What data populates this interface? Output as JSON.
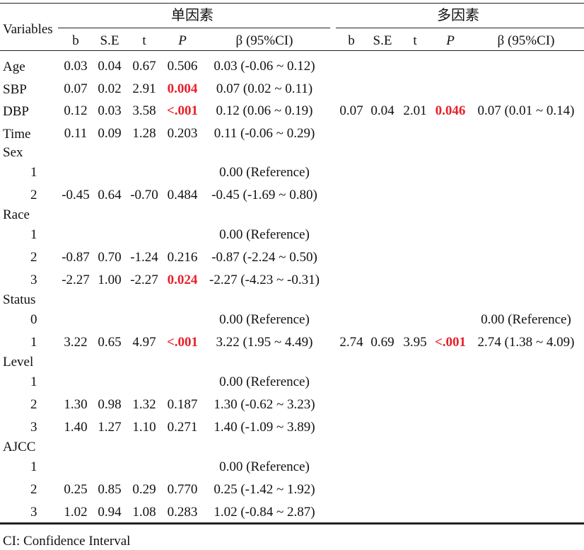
{
  "header": {
    "variables": "Variables",
    "group_uni": "单因素",
    "group_multi": "多因素",
    "columns": [
      "b",
      "S.E",
      "t",
      "P",
      "β (95%CI)"
    ]
  },
  "rows": [
    {
      "label": "Age",
      "uni": [
        "0.03",
        "0.04",
        "0.67",
        "0.506",
        "0.03 (-0.06 ~ 0.12)"
      ],
      "uni_sig": false,
      "multi": null
    },
    {
      "label": "SBP",
      "uni": [
        "0.07",
        "0.02",
        "2.91",
        "0.004",
        "0.07 (0.02 ~ 0.11)"
      ],
      "uni_sig": true,
      "multi": null
    },
    {
      "label": "DBP",
      "uni": [
        "0.12",
        "0.03",
        "3.58",
        "<.001",
        "0.12 (0.06 ~ 0.19)"
      ],
      "uni_sig": true,
      "multi": [
        "0.07",
        "0.04",
        "2.01",
        "0.046",
        "0.07 (0.01 ~ 0.14)"
      ],
      "multi_sig": true
    },
    {
      "label": "Time",
      "uni": [
        "0.11",
        "0.09",
        "1.28",
        "0.203",
        "0.11 (-0.06 ~ 0.29)"
      ],
      "uni_sig": false,
      "multi": null
    },
    {
      "label": "Sex",
      "uni": null,
      "multi": null
    },
    {
      "label": "1",
      "indent": true,
      "uni_ref": "0.00 (Reference)"
    },
    {
      "label": "2",
      "indent": true,
      "uni": [
        "-0.45",
        "0.64",
        "-0.70",
        "0.484",
        "-0.45 (-1.69 ~ 0.80)"
      ],
      "uni_sig": false,
      "multi": null
    },
    {
      "label": "Race",
      "uni": null,
      "multi": null
    },
    {
      "label": "1",
      "indent": true,
      "uni_ref": "0.00 (Reference)"
    },
    {
      "label": "2",
      "indent": true,
      "uni": [
        "-0.87",
        "0.70",
        "-1.24",
        "0.216",
        "-0.87 (-2.24 ~ 0.50)"
      ],
      "uni_sig": false,
      "multi": null
    },
    {
      "label": "3",
      "indent": true,
      "uni": [
        "-2.27",
        "1.00",
        "-2.27",
        "0.024",
        "-2.27 (-4.23 ~ -0.31)"
      ],
      "uni_sig": true,
      "multi": null
    },
    {
      "label": "Status",
      "uni": null,
      "multi": null
    },
    {
      "label": "0",
      "indent": true,
      "uni_ref": "0.00 (Reference)",
      "multi_ref": "0.00 (Reference)"
    },
    {
      "label": "1",
      "indent": true,
      "uni": [
        "3.22",
        "0.65",
        "4.97",
        "<.001",
        "3.22 (1.95 ~ 4.49)"
      ],
      "uni_sig": true,
      "multi": [
        "2.74",
        "0.69",
        "3.95",
        "<.001",
        "2.74 (1.38 ~ 4.09)"
      ],
      "multi_sig": true
    },
    {
      "label": "Level",
      "uni": null,
      "multi": null
    },
    {
      "label": "1",
      "indent": true,
      "uni_ref": "0.00 (Reference)"
    },
    {
      "label": "2",
      "indent": true,
      "uni": [
        "1.30",
        "0.98",
        "1.32",
        "0.187",
        "1.30 (-0.62 ~ 3.23)"
      ],
      "uni_sig": false,
      "multi": null
    },
    {
      "label": "3",
      "indent": true,
      "uni": [
        "1.40",
        "1.27",
        "1.10",
        "0.271",
        "1.40 (-1.09 ~ 3.89)"
      ],
      "uni_sig": false,
      "multi": null
    },
    {
      "label": "AJCC",
      "uni": null,
      "multi": null
    },
    {
      "label": "1",
      "indent": true,
      "uni_ref": "0.00 (Reference)"
    },
    {
      "label": "2",
      "indent": true,
      "uni": [
        "0.25",
        "0.85",
        "0.29",
        "0.770",
        "0.25 (-1.42 ~ 1.92)"
      ],
      "uni_sig": false,
      "multi": null
    },
    {
      "label": "3",
      "indent": true,
      "uni": [
        "1.02",
        "0.94",
        "1.08",
        "0.283",
        "1.02 (-0.84 ~ 2.87)"
      ],
      "uni_sig": false,
      "multi": null
    }
  ],
  "footnote": "CI: Confidence Interval",
  "colors": {
    "significant": "#e8202a",
    "text": "#111111",
    "rule": "#222222"
  }
}
